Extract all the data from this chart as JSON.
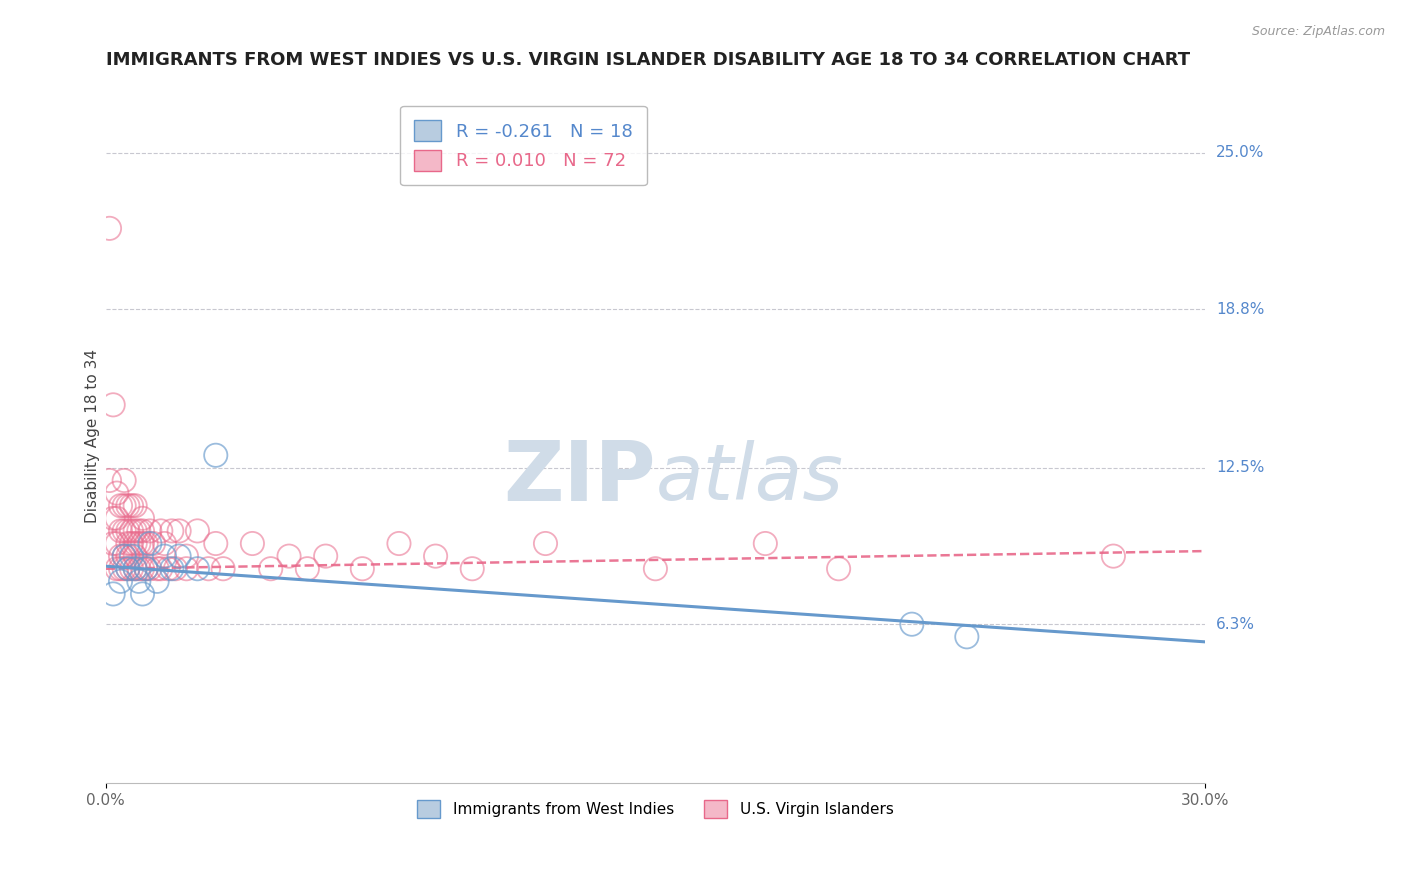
{
  "title": "IMMIGRANTS FROM WEST INDIES VS U.S. VIRGIN ISLANDER DISABILITY AGE 18 TO 34 CORRELATION CHART",
  "source": "Source: ZipAtlas.com",
  "ylabel": "Disability Age 18 to 34",
  "xlim": [
    0.0,
    0.3
  ],
  "ylim": [
    0.0,
    0.275
  ],
  "xtick_labels": [
    "0.0%",
    "30.0%"
  ],
  "xtick_positions": [
    0.0,
    0.3
  ],
  "ytick_labels": [
    "25.0%",
    "18.8%",
    "12.5%",
    "6.3%"
  ],
  "ytick_positions": [
    0.25,
    0.188,
    0.125,
    0.063
  ],
  "grid_color": "#c8c8d0",
  "background_color": "#ffffff",
  "blue_series": {
    "name": "Immigrants from West Indies",
    "color": "#6699cc",
    "fill_color": "#aabbd4",
    "R": -0.261,
    "N": 18,
    "x": [
      0.002,
      0.004,
      0.005,
      0.006,
      0.007,
      0.008,
      0.009,
      0.01,
      0.011,
      0.012,
      0.014,
      0.016,
      0.018,
      0.02,
      0.025,
      0.03,
      0.22,
      0.235
    ],
    "y": [
      0.075,
      0.08,
      0.09,
      0.085,
      0.09,
      0.085,
      0.08,
      0.075,
      0.085,
      0.095,
      0.08,
      0.09,
      0.085,
      0.09,
      0.085,
      0.13,
      0.063,
      0.058
    ]
  },
  "pink_series": {
    "name": "U.S. Virgin Islanders",
    "color": "#e8688a",
    "fill_color": "#f0a0b8",
    "R": 0.01,
    "N": 72,
    "x": [
      0.001,
      0.001,
      0.002,
      0.002,
      0.002,
      0.003,
      0.003,
      0.003,
      0.003,
      0.004,
      0.004,
      0.004,
      0.004,
      0.005,
      0.005,
      0.005,
      0.005,
      0.005,
      0.006,
      0.006,
      0.006,
      0.006,
      0.006,
      0.007,
      0.007,
      0.007,
      0.007,
      0.008,
      0.008,
      0.008,
      0.008,
      0.008,
      0.009,
      0.009,
      0.009,
      0.01,
      0.01,
      0.01,
      0.01,
      0.011,
      0.011,
      0.012,
      0.012,
      0.013,
      0.014,
      0.015,
      0.015,
      0.016,
      0.017,
      0.018,
      0.019,
      0.02,
      0.022,
      0.022,
      0.025,
      0.028,
      0.03,
      0.032,
      0.04,
      0.045,
      0.05,
      0.055,
      0.06,
      0.07,
      0.08,
      0.09,
      0.1,
      0.12,
      0.15,
      0.18,
      0.2,
      0.275
    ],
    "y": [
      0.22,
      0.12,
      0.15,
      0.105,
      0.095,
      0.115,
      0.105,
      0.095,
      0.085,
      0.11,
      0.1,
      0.09,
      0.085,
      0.12,
      0.11,
      0.1,
      0.09,
      0.085,
      0.11,
      0.1,
      0.095,
      0.09,
      0.085,
      0.11,
      0.1,
      0.095,
      0.085,
      0.11,
      0.1,
      0.095,
      0.09,
      0.085,
      0.1,
      0.095,
      0.085,
      0.105,
      0.1,
      0.095,
      0.085,
      0.095,
      0.085,
      0.1,
      0.085,
      0.095,
      0.085,
      0.1,
      0.085,
      0.095,
      0.085,
      0.1,
      0.085,
      0.1,
      0.09,
      0.085,
      0.1,
      0.085,
      0.095,
      0.085,
      0.095,
      0.085,
      0.09,
      0.085,
      0.09,
      0.085,
      0.095,
      0.09,
      0.085,
      0.095,
      0.085,
      0.095,
      0.085,
      0.09
    ]
  },
  "legend_border_color": "#aaaaaa",
  "title_fontsize": 13,
  "axis_label_fontsize": 11,
  "tick_fontsize": 11,
  "legend_fontsize": 13,
  "watermark_color": "#d0dce8",
  "watermark_fontsize": 60
}
